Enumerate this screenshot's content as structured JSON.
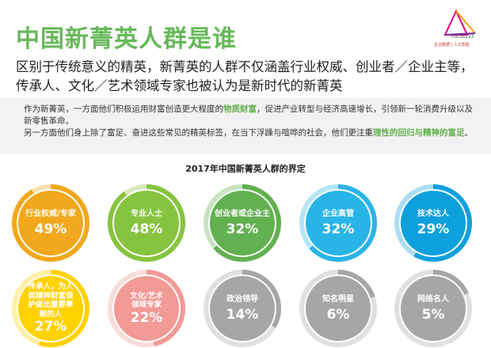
{
  "header": {
    "title": "中国新菁英人群是谁",
    "logo": {
      "brand": "Focus123",
      "tagline": "企业数据 | 人工智能"
    }
  },
  "subtitle": "区别于传统意义的精英，新菁英的人群不仅涵盖行业权威、创业者／企业主等，传承人、文化／艺术领域专家也被认为是新时代的新菁英",
  "description": {
    "part1": "作为新菁英，一方面他们积极运用财富创造更大程度的",
    "highlight1": "物质财富",
    "part2": "，促进产业转型与经济高速增长，引领新一轮消费升级以及新零售革命。",
    "part3": "另一方面他们身上除了富足、奋进这些常见的精英标签，在当下浮躁与喧哗的社会，他们更注重",
    "highlight2": "理性的回归与精神的富足",
    "part4": "。"
  },
  "chart_data": {
    "type": "bubble",
    "title": "2017年中国新菁英人群的界定",
    "items": [
      {
        "label": "行业权威/专家",
        "value": 49,
        "display": "49%",
        "color": "#f2a81c"
      },
      {
        "label": "专业人士",
        "value": 48,
        "display": "48%",
        "color": "#86c440"
      },
      {
        "label": "创业者或企业主",
        "value": 32,
        "display": "32%",
        "color": "#62b04f"
      },
      {
        "label": "企业高管",
        "value": 32,
        "display": "32%",
        "color": "#29b4e8"
      },
      {
        "label": "技术达人",
        "value": 29,
        "display": "29%",
        "color": "#0ea0dd"
      },
      {
        "label": "传承人，为人类精神财富保护做出重要奉献的人",
        "value": 27,
        "display": "27%",
        "color": "#ffd200"
      },
      {
        "label": "文化/艺术领域专家",
        "value": 22,
        "display": "22%",
        "color": "#f29a95"
      },
      {
        "label": "政治领导",
        "value": 14,
        "display": "14%",
        "color": "#a6a6a6"
      },
      {
        "label": "知名明星",
        "value": 6,
        "display": "6%",
        "color": "#a6a6a6"
      },
      {
        "label": "网络名人",
        "value": 5,
        "display": "5%",
        "color": "#a6a6a6"
      }
    ]
  }
}
